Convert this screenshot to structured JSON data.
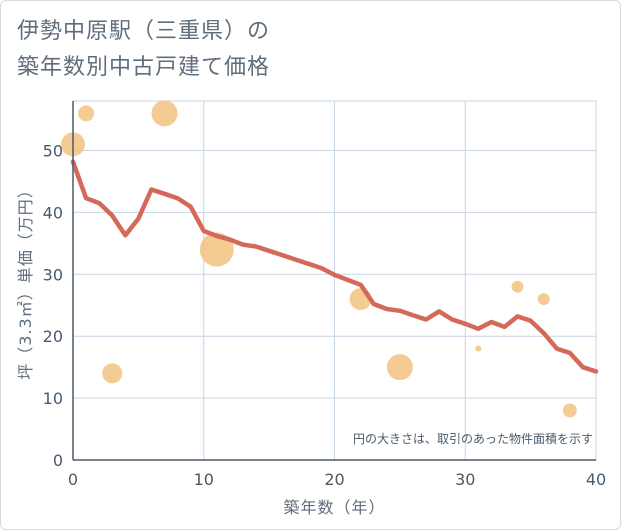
{
  "title_lines": [
    "伊勢中原駅（三重県）の",
    "築年数別中古戸建て価格"
  ],
  "colors": {
    "line": "#d4695a",
    "bubble": "#f2c27f",
    "grid": "#c8d6e4",
    "axis": "#4a5a6a"
  },
  "chart_data": {
    "type": "scatter",
    "xlabel": "築年数（年）",
    "ylabel": "坪（3.3㎡）単価（万円）",
    "xlim": [
      0,
      40
    ],
    "ylim": [
      0,
      58
    ],
    "xticks": [
      0,
      10,
      20,
      30,
      40
    ],
    "yticks": [
      0,
      10,
      20,
      30,
      40,
      50
    ],
    "grid": true,
    "note": "円の大きさは、取引のあった物件面積を示す",
    "line": {
      "x": [
        0,
        1,
        2,
        3,
        4,
        5,
        6,
        7,
        8,
        9,
        10,
        11,
        12,
        13,
        14,
        15,
        16,
        17,
        18,
        19,
        20,
        21,
        22,
        23,
        24,
        25,
        26,
        27,
        28,
        29,
        30,
        31,
        32,
        33,
        34,
        35,
        36,
        37,
        38,
        39,
        40
      ],
      "y": [
        48.2,
        42.3,
        41.5,
        39.5,
        36.3,
        39.0,
        43.7,
        43.0,
        42.3,
        40.9,
        37.0,
        36.2,
        35.6,
        34.8,
        34.5,
        33.8,
        33.1,
        32.4,
        31.7,
        31.0,
        29.9,
        29.1,
        28.3,
        25.2,
        24.4,
        24.1,
        23.4,
        22.7,
        24.0,
        22.7,
        22.0,
        21.2,
        22.3,
        21.5,
        23.2,
        22.5,
        20.5,
        18.0,
        17.3,
        15.0,
        14.3
      ]
    },
    "bubbles": [
      {
        "x": 0,
        "y": 51,
        "size": 12
      },
      {
        "x": 1,
        "y": 56,
        "size": 8
      },
      {
        "x": 7,
        "y": 56,
        "size": 13
      },
      {
        "x": 3,
        "y": 14,
        "size": 10
      },
      {
        "x": 11,
        "y": 34,
        "size": 17
      },
      {
        "x": 22,
        "y": 26,
        "size": 11
      },
      {
        "x": 25,
        "y": 15,
        "size": 13
      },
      {
        "x": 31,
        "y": 18,
        "size": 3
      },
      {
        "x": 34,
        "y": 28,
        "size": 6
      },
      {
        "x": 36,
        "y": 26,
        "size": 6
      },
      {
        "x": 38,
        "y": 8,
        "size": 7
      }
    ]
  }
}
